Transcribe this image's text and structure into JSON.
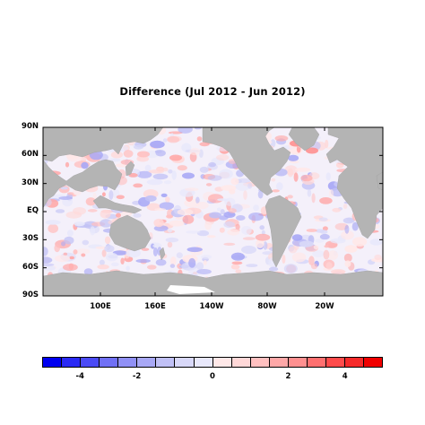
{
  "title": "Difference (Jul 2012 - Jun 2012)",
  "map": {
    "lat_labels": [
      "90N",
      "60N",
      "30N",
      "EQ",
      "30S",
      "60S",
      "90S"
    ],
    "lon_labels": [
      "100E",
      "160E",
      "140W",
      "80W",
      "20W"
    ],
    "land_color": "#b4b4b4",
    "ocean_base_color": "#f4f0fa",
    "ice_color": "#ffffff"
  },
  "colorbar": {
    "tick_labels": [
      "-4",
      "-2",
      "0",
      "2",
      "4"
    ],
    "colors": [
      "#0000f0",
      "#2a2af5",
      "#4b4bf5",
      "#7070f5",
      "#9090f5",
      "#a8a8f5",
      "#c0c0f5",
      "#d8d8f8",
      "#e8e8fb",
      "#ffe8e8",
      "#ffd8d8",
      "#ffc0c0",
      "#ffa8a8",
      "#ff9090",
      "#ff7070",
      "#ff4b4b",
      "#f52a2a",
      "#f00000"
    ]
  }
}
